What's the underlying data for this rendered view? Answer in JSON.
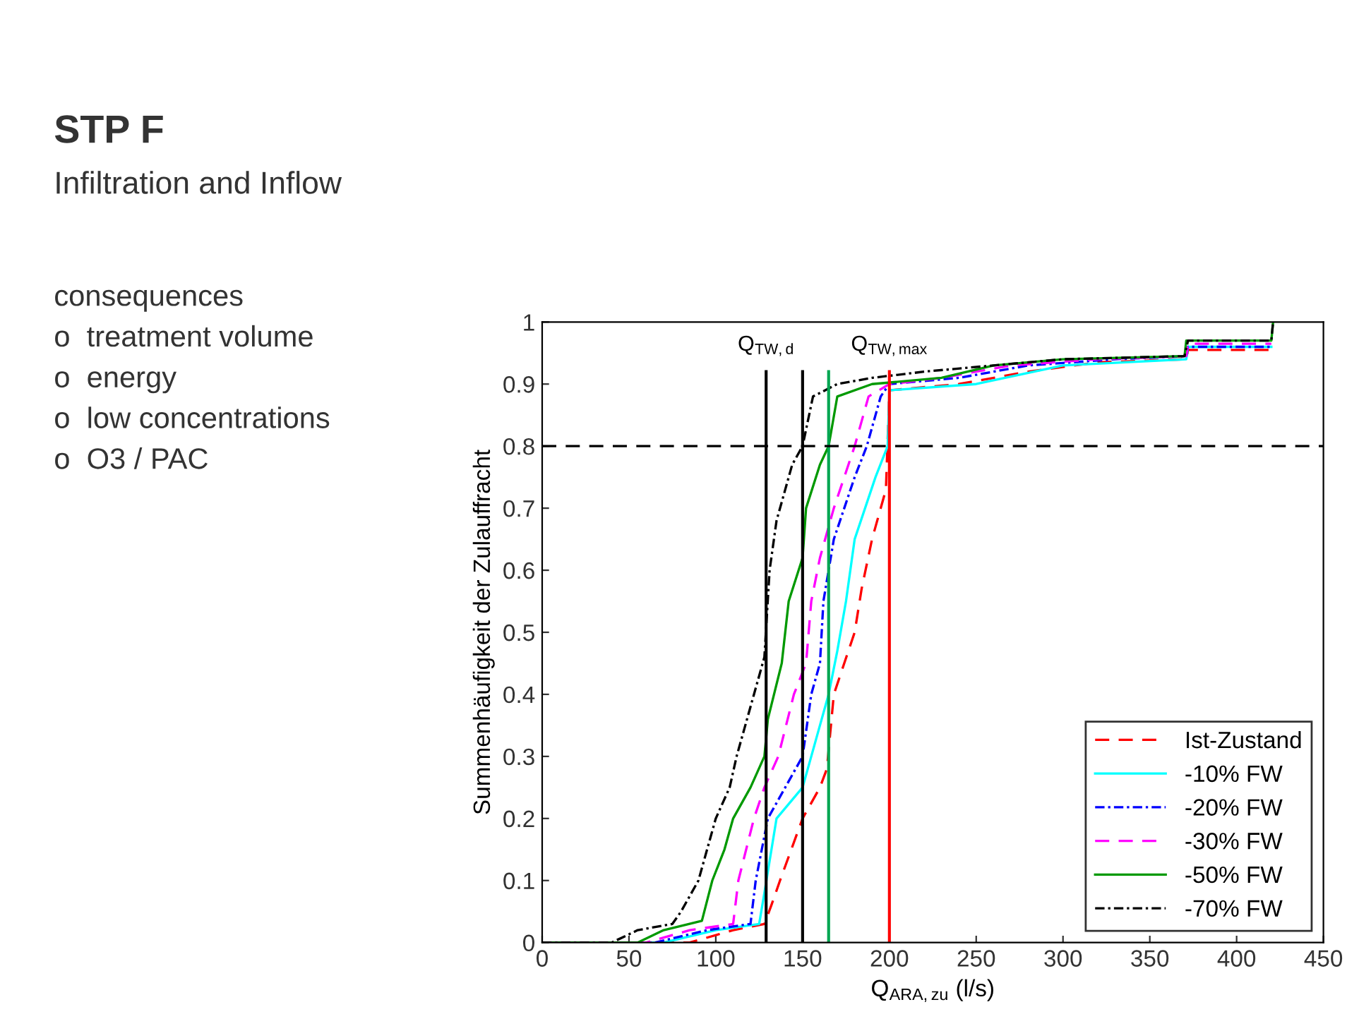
{
  "chart_data": {
    "type": "line",
    "title": "STP F",
    "subtitle": "Infiltration and Inflow",
    "annotations": [
      "consequences",
      "o  treatment volume",
      "o  energy",
      "o  low concentrations",
      "o  O3 / PAC"
    ],
    "xlabel": "Q$_{ARA,zu}$ (l/s)",
    "ylabel": "Summenhäufigkeit der Zulauffracht",
    "xlim": [
      0,
      450
    ],
    "ylim": [
      0,
      1
    ],
    "xticks": [
      0,
      50,
      100,
      150,
      200,
      250,
      300,
      350,
      400,
      450
    ],
    "yticks": [
      0,
      0.1,
      0.2,
      0.3,
      0.4,
      0.5,
      0.6,
      0.7,
      0.8,
      0.9,
      1
    ],
    "grid": false,
    "legend": "bottom right",
    "marker": "none",
    "ref_lines": [
      {
        "axis": "x",
        "value": 129,
        "label": "Q$_{TW,d}$",
        "color": "#000000",
        "line_style": "solid"
      },
      {
        "axis": "x",
        "value": 150,
        "label": null,
        "color": "#000000",
        "line_style": "solid"
      },
      {
        "axis": "x",
        "value": 165,
        "label": null,
        "color": "#00a651",
        "line_style": "solid"
      },
      {
        "axis": "x",
        "value": 200,
        "label": "Q$_{TW,max}$",
        "color": "#ff0000",
        "line_style": "solid"
      },
      {
        "axis": "y",
        "value": 0.8,
        "label": null,
        "color": "#000000",
        "line_style": "dashed"
      }
    ],
    "series": [
      {
        "name": "Ist-Zustand",
        "color": "#ff0000",
        "line_style": "dashed",
        "x": [
          0,
          85,
          110,
          128,
          132,
          137,
          150,
          160,
          164,
          168,
          180,
          184,
          190,
          198,
          200,
          240,
          280,
          320,
          371,
          372,
          420
        ],
        "values": [
          0,
          0,
          0.02,
          0.03,
          0.06,
          0.1,
          0.2,
          0.25,
          0.28,
          0.4,
          0.5,
          0.57,
          0.65,
          0.73,
          0.89,
          0.9,
          0.92,
          0.935,
          0.94,
          0.955,
          0.955
        ]
      },
      {
        "name": "-10% FW",
        "color": "#00ffff",
        "line_style": "solid",
        "x": [
          0,
          70,
          100,
          125,
          128,
          135,
          150,
          160,
          165,
          170,
          175,
          180,
          192,
          199,
          200,
          250,
          300,
          371,
          372,
          420
        ],
        "values": [
          0,
          0,
          0.02,
          0.03,
          0.08,
          0.2,
          0.25,
          0.35,
          0.4,
          0.47,
          0.55,
          0.65,
          0.75,
          0.8,
          0.89,
          0.9,
          0.93,
          0.94,
          0.96,
          0.96
        ]
      },
      {
        "name": "-20% FW",
        "color": "#0000ff",
        "line_style": "dashdot",
        "x": [
          0,
          65,
          95,
          120,
          123,
          130,
          150,
          155,
          160,
          162,
          168,
          180,
          187,
          195,
          200,
          240,
          280,
          330,
          371,
          372,
          420
        ],
        "values": [
          0,
          0,
          0.02,
          0.03,
          0.1,
          0.2,
          0.3,
          0.4,
          0.45,
          0.55,
          0.65,
          0.75,
          0.8,
          0.88,
          0.9,
          0.91,
          0.93,
          0.94,
          0.945,
          0.96,
          0.96
        ]
      },
      {
        "name": "-30% FW",
        "color": "#ff00ff",
        "line_style": "dashed",
        "x": [
          0,
          60,
          85,
          110,
          113,
          122,
          128,
          136,
          145,
          152,
          155,
          160,
          168,
          180,
          188,
          200,
          230,
          270,
          320,
          371,
          372,
          420
        ],
        "values": [
          0,
          0,
          0.02,
          0.03,
          0.1,
          0.2,
          0.25,
          0.3,
          0.4,
          0.45,
          0.55,
          0.62,
          0.7,
          0.8,
          0.88,
          0.9,
          0.91,
          0.93,
          0.94,
          0.945,
          0.965,
          0.965
        ]
      },
      {
        "name": "-50% FW",
        "color": "#009900",
        "line_style": "solid",
        "x": [
          0,
          55,
          70,
          92,
          98,
          105,
          110,
          120,
          128,
          130,
          138,
          142,
          150,
          152,
          160,
          165,
          170,
          190,
          230,
          260,
          300,
          370,
          371,
          420,
          421
        ],
        "values": [
          0,
          0,
          0.02,
          0.035,
          0.1,
          0.15,
          0.2,
          0.25,
          0.3,
          0.36,
          0.45,
          0.55,
          0.62,
          0.7,
          0.77,
          0.8,
          0.88,
          0.9,
          0.91,
          0.93,
          0.94,
          0.945,
          0.97,
          0.97,
          1
        ]
      },
      {
        "name": "-70% FW",
        "color": "#000000",
        "line_style": "dashdot",
        "x": [
          0,
          40,
          55,
          75,
          80,
          90,
          100,
          108,
          112,
          122,
          128,
          131,
          135,
          144,
          150,
          156,
          170,
          190,
          220,
          260,
          300,
          370,
          372,
          420,
          421
        ],
        "values": [
          0,
          0,
          0.02,
          0.03,
          0.05,
          0.1,
          0.2,
          0.25,
          0.3,
          0.4,
          0.46,
          0.6,
          0.68,
          0.77,
          0.8,
          0.88,
          0.9,
          0.91,
          0.92,
          0.93,
          0.94,
          0.945,
          0.97,
          0.97,
          1
        ]
      }
    ]
  }
}
